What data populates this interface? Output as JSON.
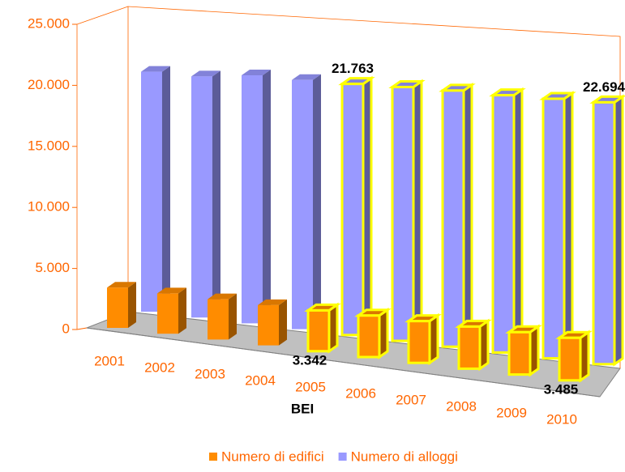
{
  "chart_data": {
    "type": "bar3d",
    "categories": [
      "2001",
      "2002",
      "2003",
      "2004",
      "2005",
      "2006",
      "2007",
      "2008",
      "2009",
      "2010"
    ],
    "series": [
      {
        "name": "Numero di edifici",
        "color": "#ff8c00",
        "values": [
          3300,
          3300,
          3300,
          3300,
          3342,
          3400,
          3420,
          3450,
          3470,
          3485
        ],
        "value_labels": [
          null,
          null,
          null,
          null,
          "3.342",
          null,
          null,
          null,
          null,
          "3.485"
        ]
      },
      {
        "name": "Numero di alloggi",
        "color": "#9999ff",
        "values": [
          20800,
          20900,
          21500,
          21600,
          21763,
          22000,
          22200,
          22300,
          22500,
          22694
        ],
        "value_labels": [
          null,
          null,
          null,
          null,
          "21.763",
          null,
          null,
          null,
          null,
          "22.694"
        ]
      }
    ],
    "ylim": [
      0,
      25000
    ],
    "yticks": [
      0,
      {
        "value": 5000,
        "label": "5.000"
      },
      {
        "value": 10000,
        "label": "10.000"
      },
      {
        "value": 15000,
        "label": "15.000"
      },
      {
        "value": 20000,
        "label": "20.000"
      },
      {
        "value": 25000,
        "label": "25.000"
      }
    ],
    "annotation": {
      "text": "BEI",
      "category": "2005"
    },
    "highlight_color": "#ffff00",
    "axis_color": "#ff6600",
    "floor_color": "#c0c0c0"
  }
}
